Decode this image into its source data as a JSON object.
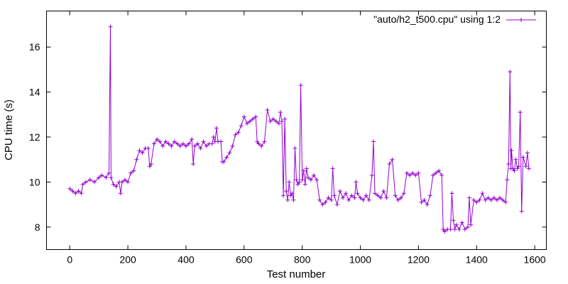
{
  "chart_data": {
    "type": "line",
    "xlabel": "Test number",
    "ylabel": "CPU time (s)",
    "xlim": [
      -80,
      1640
    ],
    "ylim": [
      7.0,
      17.6
    ],
    "x_ticks": [
      0,
      200,
      400,
      600,
      800,
      1000,
      1200,
      1400,
      1600
    ],
    "y_ticks": [
      8,
      10,
      12,
      14,
      16
    ],
    "legend_position": "top-right",
    "grid": false,
    "series": [
      {
        "name": "\"auto/h2_t500.cpu\" using 1:2",
        "color": "#9400d3",
        "marker": "plus",
        "points": [
          [
            0,
            9.7
          ],
          [
            10,
            9.6
          ],
          [
            20,
            9.5
          ],
          [
            30,
            9.6
          ],
          [
            40,
            9.5
          ],
          [
            45,
            9.9
          ],
          [
            55,
            10.0
          ],
          [
            70,
            10.1
          ],
          [
            85,
            10.0
          ],
          [
            100,
            10.2
          ],
          [
            110,
            10.3
          ],
          [
            125,
            10.2
          ],
          [
            135,
            10.4
          ],
          [
            140,
            16.9
          ],
          [
            142,
            10.2
          ],
          [
            150,
            9.9
          ],
          [
            160,
            9.8
          ],
          [
            170,
            10.0
          ],
          [
            175,
            9.5
          ],
          [
            180,
            10.0
          ],
          [
            190,
            10.1
          ],
          [
            200,
            10.0
          ],
          [
            210,
            10.4
          ],
          [
            220,
            10.5
          ],
          [
            230,
            11.0
          ],
          [
            240,
            11.4
          ],
          [
            250,
            11.3
          ],
          [
            260,
            11.5
          ],
          [
            270,
            11.5
          ],
          [
            275,
            10.7
          ],
          [
            280,
            10.8
          ],
          [
            290,
            11.7
          ],
          [
            300,
            11.9
          ],
          [
            310,
            11.8
          ],
          [
            320,
            11.6
          ],
          [
            330,
            11.8
          ],
          [
            340,
            11.7
          ],
          [
            350,
            11.6
          ],
          [
            360,
            11.8
          ],
          [
            370,
            11.7
          ],
          [
            380,
            11.6
          ],
          [
            390,
            11.7
          ],
          [
            400,
            11.6
          ],
          [
            410,
            11.7
          ],
          [
            420,
            11.9
          ],
          [
            425,
            10.8
          ],
          [
            430,
            11.6
          ],
          [
            440,
            11.7
          ],
          [
            450,
            11.5
          ],
          [
            460,
            11.8
          ],
          [
            470,
            11.6
          ],
          [
            480,
            11.7
          ],
          [
            490,
            11.7
          ],
          [
            495,
            12.0
          ],
          [
            500,
            11.8
          ],
          [
            505,
            12.4
          ],
          [
            510,
            11.8
          ],
          [
            520,
            11.8
          ],
          [
            525,
            10.9
          ],
          [
            530,
            10.9
          ],
          [
            540,
            11.1
          ],
          [
            550,
            11.3
          ],
          [
            560,
            11.6
          ],
          [
            570,
            12.1
          ],
          [
            580,
            12.2
          ],
          [
            590,
            12.5
          ],
          [
            600,
            12.9
          ],
          [
            610,
            12.6
          ],
          [
            620,
            12.7
          ],
          [
            630,
            12.8
          ],
          [
            640,
            12.9
          ],
          [
            645,
            11.8
          ],
          [
            650,
            11.7
          ],
          [
            660,
            11.6
          ],
          [
            670,
            11.8
          ],
          [
            680,
            13.2
          ],
          [
            690,
            12.7
          ],
          [
            700,
            12.8
          ],
          [
            710,
            12.7
          ],
          [
            720,
            12.6
          ],
          [
            725,
            13.1
          ],
          [
            730,
            12.7
          ],
          [
            735,
            9.4
          ],
          [
            740,
            12.8
          ],
          [
            745,
            9.6
          ],
          [
            750,
            9.2
          ],
          [
            755,
            10.0
          ],
          [
            760,
            9.4
          ],
          [
            765,
            9.5
          ],
          [
            770,
            9.2
          ],
          [
            775,
            11.5
          ],
          [
            780,
            10.1
          ],
          [
            785,
            9.9
          ],
          [
            790,
            10.0
          ],
          [
            795,
            14.3
          ],
          [
            800,
            10.1
          ],
          [
            805,
            10.5
          ],
          [
            810,
            9.9
          ],
          [
            815,
            10.6
          ],
          [
            820,
            10.2
          ],
          [
            830,
            10.1
          ],
          [
            840,
            10.3
          ],
          [
            850,
            10.1
          ],
          [
            860,
            9.2
          ],
          [
            870,
            9.0
          ],
          [
            880,
            9.1
          ],
          [
            890,
            9.3
          ],
          [
            900,
            9.2
          ],
          [
            905,
            10.6
          ],
          [
            910,
            9.4
          ],
          [
            920,
            9.0
          ],
          [
            930,
            9.6
          ],
          [
            940,
            9.3
          ],
          [
            950,
            9.5
          ],
          [
            960,
            9.2
          ],
          [
            970,
            9.4
          ],
          [
            980,
            9.3
          ],
          [
            985,
            10.0
          ],
          [
            990,
            9.5
          ],
          [
            1000,
            9.3
          ],
          [
            1010,
            9.2
          ],
          [
            1020,
            9.4
          ],
          [
            1030,
            9.2
          ],
          [
            1040,
            10.3
          ],
          [
            1045,
            11.8
          ],
          [
            1050,
            9.5
          ],
          [
            1060,
            9.4
          ],
          [
            1070,
            9.3
          ],
          [
            1080,
            9.6
          ],
          [
            1090,
            9.3
          ],
          [
            1100,
            10.8
          ],
          [
            1110,
            11.0
          ],
          [
            1120,
            9.4
          ],
          [
            1130,
            9.2
          ],
          [
            1140,
            9.3
          ],
          [
            1150,
            9.5
          ],
          [
            1160,
            10.4
          ],
          [
            1170,
            10.3
          ],
          [
            1180,
            10.4
          ],
          [
            1190,
            10.3
          ],
          [
            1200,
            10.4
          ],
          [
            1210,
            9.1
          ],
          [
            1220,
            9.2
          ],
          [
            1230,
            9.0
          ],
          [
            1240,
            9.4
          ],
          [
            1250,
            10.3
          ],
          [
            1260,
            10.4
          ],
          [
            1270,
            10.5
          ],
          [
            1280,
            10.3
          ],
          [
            1285,
            7.9
          ],
          [
            1290,
            7.8
          ],
          [
            1300,
            7.9
          ],
          [
            1310,
            7.9
          ],
          [
            1315,
            9.5
          ],
          [
            1320,
            8.3
          ],
          [
            1325,
            7.9
          ],
          [
            1330,
            8.1
          ],
          [
            1340,
            7.9
          ],
          [
            1350,
            8.2
          ],
          [
            1360,
            7.9
          ],
          [
            1370,
            8.0
          ],
          [
            1375,
            9.3
          ],
          [
            1380,
            8.1
          ],
          [
            1390,
            9.2
          ],
          [
            1400,
            9.1
          ],
          [
            1410,
            9.2
          ],
          [
            1420,
            9.5
          ],
          [
            1430,
            9.2
          ],
          [
            1440,
            9.3
          ],
          [
            1450,
            9.2
          ],
          [
            1460,
            9.3
          ],
          [
            1470,
            9.2
          ],
          [
            1480,
            9.3
          ],
          [
            1490,
            9.2
          ],
          [
            1500,
            9.1
          ],
          [
            1505,
            10.1
          ],
          [
            1510,
            10.8
          ],
          [
            1515,
            14.9
          ],
          [
            1518,
            10.6
          ],
          [
            1520,
            11.4
          ],
          [
            1525,
            10.6
          ],
          [
            1530,
            10.5
          ],
          [
            1535,
            11.0
          ],
          [
            1540,
            10.6
          ],
          [
            1545,
            10.7
          ],
          [
            1550,
            13.1
          ],
          [
            1555,
            8.7
          ],
          [
            1560,
            11.1
          ],
          [
            1570,
            10.7
          ],
          [
            1575,
            11.3
          ],
          [
            1580,
            10.6
          ]
        ]
      }
    ]
  }
}
